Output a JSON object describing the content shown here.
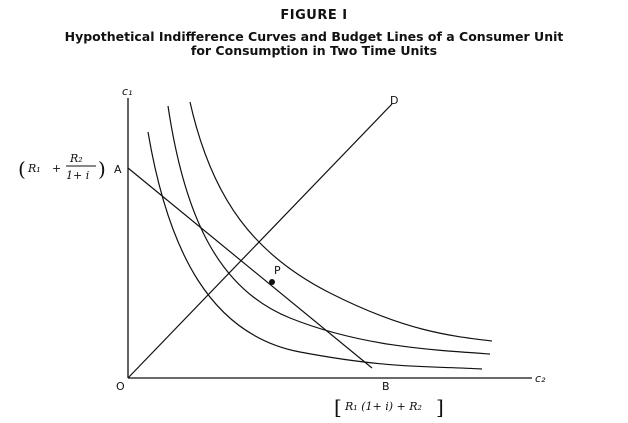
{
  "figure": {
    "label": "FIGURE I",
    "title_line1": "Hypothetical Indifference Curves and Budget Lines of a Consumer Unit",
    "title_line2": "for Consumption in Two Time Units"
  },
  "axes": {
    "y_label": "c₁",
    "x_label": "c₂",
    "origin_label": "O"
  },
  "points": {
    "a": "A",
    "b": "B",
    "d": "D",
    "p": "P"
  },
  "annotations": {
    "a_open": "(",
    "a_r1": "R₁",
    "a_plus": "+",
    "a_frac_num": "R₂",
    "a_frac_den": "1+ i",
    "a_close": ")",
    "b_open": "[",
    "b_expr": "R₁ (1+ i) + R₂",
    "b_close": "]"
  }
}
